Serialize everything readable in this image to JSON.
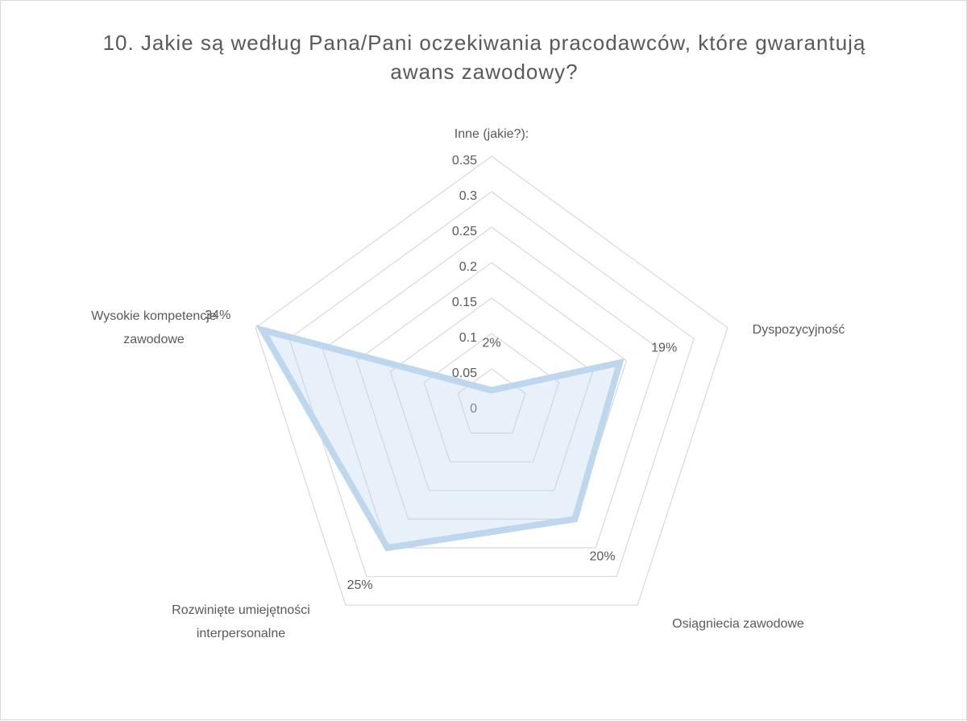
{
  "chart_data": {
    "type": "radar",
    "title": "10. Jakie są według Pana/Pani oczekiwania pracodawców, które gwarantują awans zawodowy?",
    "categories": [
      "Inne (jakie?):",
      "Dyspozycyjność",
      "Osiągniecia zawodowe",
      "Rozwinięte umiejętności interpersonalne",
      "Wysokie kompetencje zawodowe"
    ],
    "values": [
      0.02,
      0.19,
      0.2,
      0.25,
      0.34
    ],
    "value_labels": [
      "2%",
      "19%",
      "20%",
      "25%",
      "34%"
    ],
    "color": "#bdd7ee",
    "rlim": [
      0,
      0.35
    ],
    "rticks": [
      0,
      0.05,
      0.1,
      0.15,
      0.2,
      0.25,
      0.3,
      0.35
    ],
    "grid": true
  }
}
